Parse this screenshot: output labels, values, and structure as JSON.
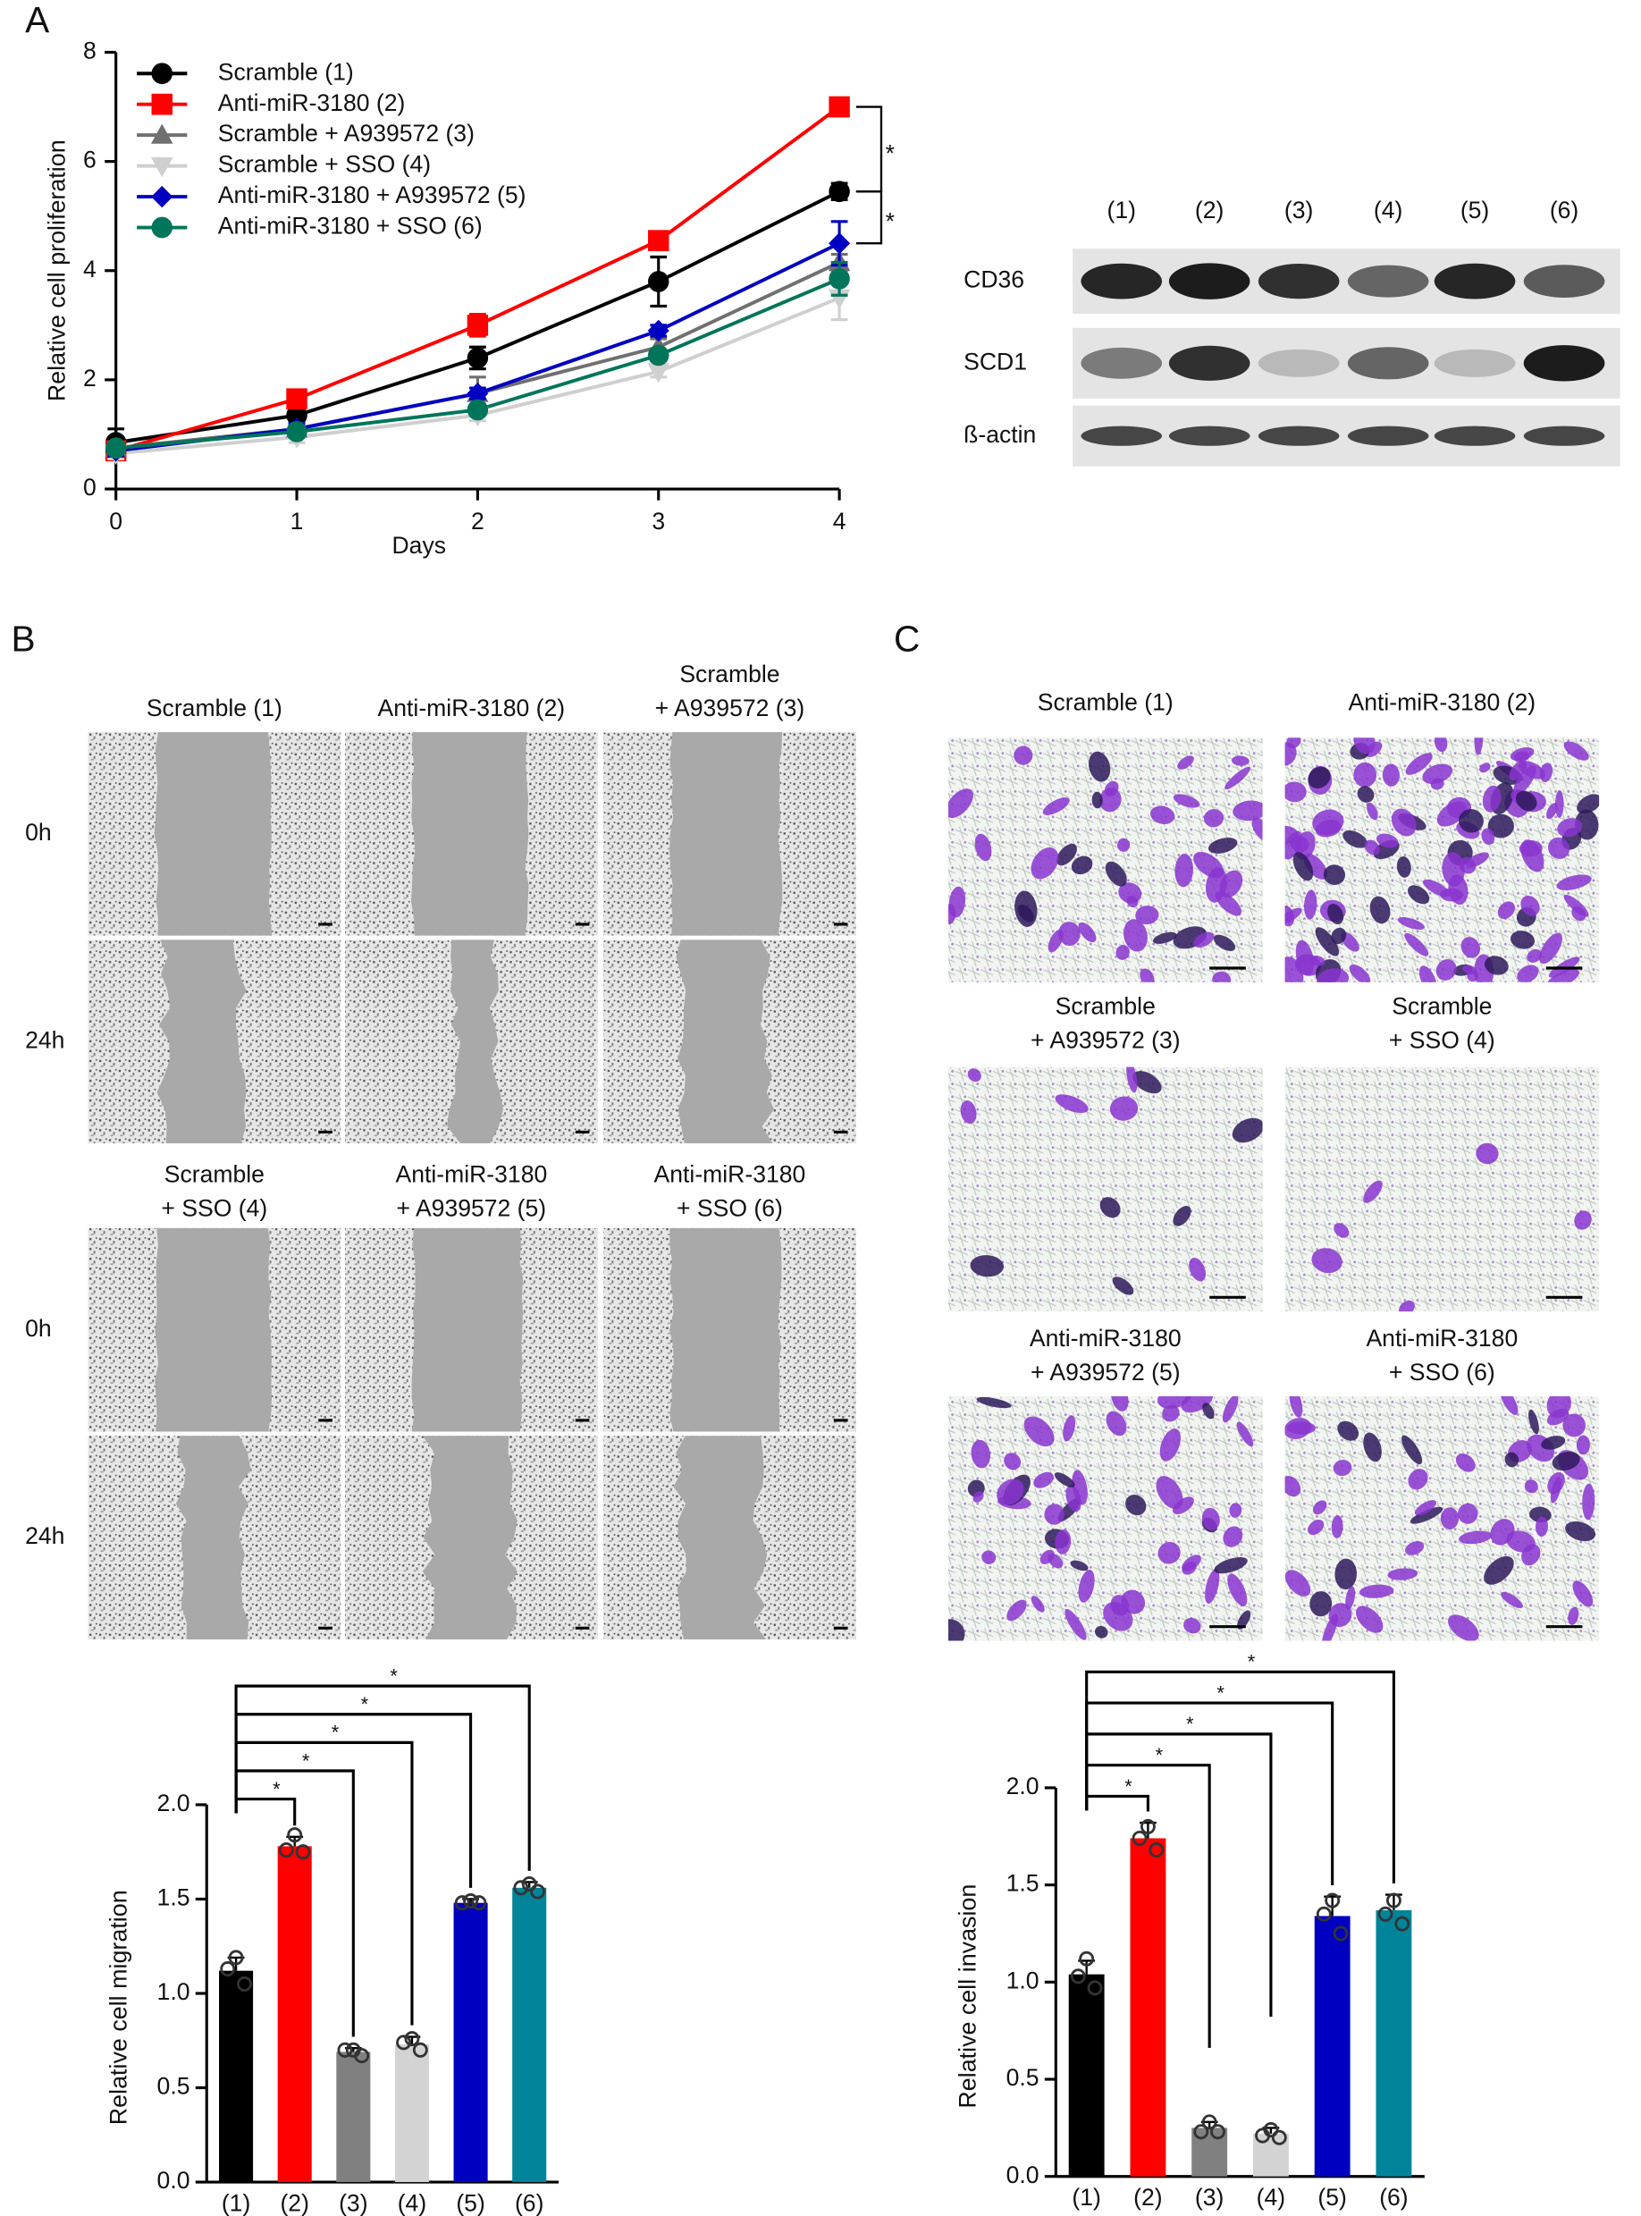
{
  "panel_labels": [
    "A",
    "B",
    "C"
  ],
  "chart_data": [
    {
      "type": "line",
      "y_label": "Relative cell proliferation",
      "x_label": "Days",
      "x": [
        0,
        1,
        2,
        3,
        4
      ],
      "xlim": [
        0,
        4
      ],
      "xticks": [
        0,
        1,
        2,
        3,
        4
      ],
      "ylim": [
        0,
        8
      ],
      "yticks": [
        0,
        2,
        4,
        6,
        8
      ],
      "series": [
        {
          "name": "Scramble (1)",
          "color": "#000000",
          "marker": "circle",
          "values": [
            0.85,
            1.35,
            2.4,
            3.8,
            5.45
          ],
          "errors": [
            0.25,
            0.1,
            0.2,
            0.45,
            0.15
          ]
        },
        {
          "name": "Anti-miR-3180 (2)",
          "color": "#ff0000",
          "marker": "square",
          "values": [
            0.7,
            1.65,
            3.0,
            4.55,
            7.0
          ],
          "errors": [
            0.1,
            0.1,
            0.2,
            0.1,
            0.15
          ]
        },
        {
          "name": "Scramble + A939572 (3)",
          "color": "#707070",
          "marker": "triangle",
          "values": [
            0.75,
            1.1,
            1.75,
            2.6,
            4.15
          ],
          "errors": [
            0.1,
            0.1,
            0.3,
            0.15,
            0.15
          ]
        },
        {
          "name": "Scramble + SSO (4)",
          "color": "#cfcfcf",
          "marker": "triangle-down",
          "values": [
            0.65,
            0.95,
            1.35,
            2.15,
            3.5
          ],
          "errors": [
            0.1,
            0.1,
            0.1,
            0.1,
            0.4
          ]
        },
        {
          "name": "Anti-miR-3180 + A939572 (5)",
          "color": "#0000c0",
          "marker": "diamond",
          "values": [
            0.7,
            1.1,
            1.75,
            2.9,
            4.5
          ],
          "errors": [
            0.1,
            0.1,
            0.1,
            0.1,
            0.4
          ]
        },
        {
          "name": "Anti-miR-3180 + SSO (6)",
          "color": "#00755a",
          "marker": "circle",
          "values": [
            0.75,
            1.05,
            1.45,
            2.45,
            3.85
          ],
          "errors": [
            0.1,
            0.1,
            0.1,
            0.1,
            0.3
          ]
        }
      ],
      "annotations": [
        "*",
        "*"
      ]
    },
    {
      "type": "bar",
      "y_label": "Relative cell migration",
      "categories": [
        "(1)",
        "(2)",
        "(3)",
        "(4)",
        "(5)",
        "(6)"
      ],
      "values": [
        1.12,
        1.78,
        0.69,
        0.73,
        1.48,
        1.56
      ],
      "errors": [
        0.07,
        0.05,
        0.02,
        0.04,
        0.02,
        0.03
      ],
      "points": [
        [
          1.19,
          1.13,
          1.05
        ],
        [
          1.84,
          1.76,
          1.75
        ],
        [
          0.7,
          0.7,
          0.67
        ],
        [
          0.76,
          0.74,
          0.7
        ],
        [
          1.49,
          1.48,
          1.48
        ],
        [
          1.58,
          1.56,
          1.54
        ]
      ],
      "colors": [
        "#000000",
        "#ff0000",
        "#808080",
        "#d3d3d3",
        "#0000c0",
        "#00849a"
      ],
      "ylim": [
        0,
        2
      ],
      "yticks": [
        {
          "value": 0,
          "label": "0.0"
        },
        0.5,
        {
          "value": 1,
          "label": "1.0"
        },
        1.5,
        {
          "value": 2,
          "label": "2.0"
        }
      ],
      "annotations": [
        "*",
        "*",
        "*",
        "*",
        "*"
      ]
    },
    {
      "type": "bar",
      "y_label": "Relative cell invasion",
      "categories": [
        "(1)",
        "(2)",
        "(3)",
        "(4)",
        "(5)",
        "(6)"
      ],
      "values": [
        1.04,
        1.74,
        0.25,
        0.22,
        1.34,
        1.37
      ],
      "errors": [
        0.07,
        0.08,
        0.03,
        0.03,
        0.1,
        0.08
      ],
      "points": [
        [
          1.12,
          1.03,
          0.97
        ],
        [
          1.8,
          1.74,
          1.68
        ],
        [
          0.28,
          0.23,
          0.23
        ],
        [
          0.24,
          0.21,
          0.2
        ],
        [
          1.42,
          1.35,
          1.25
        ],
        [
          1.42,
          1.35,
          1.3
        ]
      ],
      "colors": [
        "#000000",
        "#ff0000",
        "#808080",
        "#d3d3d3",
        "#0000c0",
        "#00849a"
      ],
      "ylim": [
        0,
        2
      ],
      "yticks": [
        {
          "value": 0,
          "label": "0.0"
        },
        0.5,
        {
          "value": 1,
          "label": "1.0"
        },
        1.5,
        {
          "value": 2,
          "label": "2.0"
        }
      ],
      "annotations": [
        "*",
        "*",
        "*",
        "*",
        "*"
      ]
    }
  ],
  "blot": {
    "lanes": [
      "(1)",
      "(2)",
      "(3)",
      "(4)",
      "(5)",
      "(6)"
    ],
    "rows": [
      "CD36",
      "SCD1",
      "ß-actin"
    ]
  },
  "migration_images": {
    "titles": [
      [
        "Scramble (1)"
      ],
      [
        "Anti-miR-3180 (2)"
      ],
      [
        "Scramble",
        "+ A939572 (3)"
      ],
      [
        "Scramble",
        "+ SSO (4)"
      ],
      [
        "Anti-miR-3180",
        "+ A939572 (5)"
      ],
      [
        "Anti-miR-3180",
        "+ SSO (6)"
      ]
    ],
    "rows": [
      "0h",
      "24h",
      "0h",
      "24h"
    ]
  },
  "invasion_images": {
    "titles": [
      [
        "Scramble (1)"
      ],
      [
        "Anti-miR-3180 (2)"
      ],
      [
        "Scramble",
        "+ A939572 (3)"
      ],
      [
        "Scramble",
        "+ SSO (4)"
      ],
      [
        "Anti-miR-3180",
        "+ A939572 (5)"
      ],
      [
        "Anti-miR-3180",
        "+ SSO (6)"
      ]
    ]
  }
}
